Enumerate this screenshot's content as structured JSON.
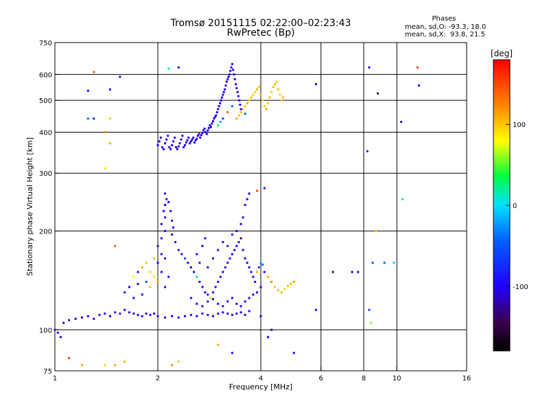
{
  "title": "Tromsø 20151115 02:22:00–02:23:43",
  "subtitle": "RwPretec (Bp)",
  "phases": {
    "heading": "Phases",
    "line_o": "mean, sd,O: -93.3, 18.0",
    "line_x": "mean, sd,X:  93.8, 21.5"
  },
  "colorbar": {
    "unit": "[deg]",
    "ticks": [
      {
        "value": 100,
        "label": "100"
      },
      {
        "value": 0,
        "label": "0"
      },
      {
        "value": -100,
        "label": "-100"
      }
    ],
    "range": [
      -180,
      180
    ]
  },
  "chart_data": {
    "type": "scatter",
    "xlabel": "Frequency [MHz]",
    "ylabel": "Stationary phase Virtual Height [km]",
    "x_scale": "log",
    "y_scale": "log",
    "xlim": [
      1,
      16
    ],
    "ylim": [
      75,
      750
    ],
    "grid": true,
    "x_ticks": [
      {
        "value": 1,
        "label": "1"
      },
      {
        "value": 2,
        "label": "2"
      },
      {
        "value": 4,
        "label": "4"
      },
      {
        "value": 6,
        "label": "6"
      },
      {
        "value": 8,
        "label": "8"
      },
      {
        "value": 10,
        "label": "10"
      },
      {
        "value": 16,
        "label": "16"
      }
    ],
    "x_grid": [
      2,
      4,
      6,
      8,
      10
    ],
    "y_ticks": [
      {
        "value": 75,
        "label": "75"
      },
      {
        "value": 100,
        "label": "100"
      },
      {
        "value": 200,
        "label": "200"
      },
      {
        "value": 300,
        "label": "300"
      },
      {
        "value": 400,
        "label": "400"
      },
      {
        "value": 500,
        "label": "500"
      },
      {
        "value": 600,
        "label": "600"
      },
      {
        "value": 750,
        "label": "750"
      }
    ],
    "y_grid": [
      100,
      200,
      300,
      400,
      500,
      600
    ],
    "point_color_by": "phase [deg]",
    "points": [
      [
        1.02,
        98,
        -100
      ],
      [
        1.04,
        95,
        -110
      ],
      [
        1.06,
        105,
        -105
      ],
      [
        1.1,
        107,
        -95
      ],
      [
        1.15,
        108,
        -100
      ],
      [
        1.2,
        109,
        -110
      ],
      [
        1.25,
        110,
        -100
      ],
      [
        1.3,
        108,
        -105
      ],
      [
        1.35,
        111,
        -95
      ],
      [
        1.4,
        112,
        -100
      ],
      [
        1.45,
        110,
        -110
      ],
      [
        1.5,
        113,
        -100
      ],
      [
        1.55,
        112,
        -90
      ],
      [
        1.6,
        115,
        -100
      ],
      [
        1.65,
        113,
        -105
      ],
      [
        1.7,
        112,
        -110
      ],
      [
        1.75,
        111,
        -100
      ],
      [
        1.8,
        110,
        -95
      ],
      [
        1.85,
        112,
        -100
      ],
      [
        1.9,
        111,
        -105
      ],
      [
        1.95,
        112,
        -110
      ],
      [
        2.0,
        110,
        -100
      ],
      [
        2.1,
        109,
        -95
      ],
      [
        2.2,
        110,
        -100
      ],
      [
        2.3,
        109,
        -105
      ],
      [
        2.4,
        110,
        -100
      ],
      [
        2.5,
        111,
        -95
      ],
      [
        2.6,
        110,
        -105
      ],
      [
        2.7,
        112,
        -100
      ],
      [
        2.8,
        111,
        -110
      ],
      [
        2.9,
        110,
        -100
      ],
      [
        3.0,
        112,
        -95
      ],
      [
        3.1,
        113,
        -105
      ],
      [
        3.2,
        112,
        -100
      ],
      [
        3.3,
        111,
        -110
      ],
      [
        3.4,
        112,
        -100
      ],
      [
        3.5,
        113,
        -95
      ],
      [
        3.6,
        111,
        -105
      ],
      [
        3.7,
        114,
        -100
      ],
      [
        1.6,
        130,
        -100
      ],
      [
        1.65,
        135,
        -105
      ],
      [
        1.7,
        125,
        -95
      ],
      [
        1.75,
        138,
        -110
      ],
      [
        1.8,
        128,
        -100
      ],
      [
        1.85,
        140,
        -60
      ],
      [
        1.9,
        135,
        100
      ],
      [
        1.95,
        145,
        90
      ],
      [
        2.0,
        140,
        110
      ],
      [
        2.05,
        150,
        -100
      ],
      [
        2.1,
        135,
        -105
      ],
      [
        2.15,
        145,
        -95
      ],
      [
        1.8,
        155,
        110
      ],
      [
        1.85,
        160,
        100
      ],
      [
        1.9,
        150,
        95
      ],
      [
        1.95,
        165,
        105
      ],
      [
        1.7,
        145,
        80
      ],
      [
        1.75,
        150,
        -100
      ],
      [
        2.0,
        160,
        -105
      ],
      [
        2.05,
        170,
        -100
      ],
      [
        2.1,
        165,
        -95
      ],
      [
        2.0,
        180,
        -110
      ],
      [
        2.05,
        190,
        -100
      ],
      [
        2.1,
        200,
        -100
      ],
      [
        2.05,
        210,
        -105
      ],
      [
        2.1,
        220,
        -95
      ],
      [
        2.08,
        230,
        -100
      ],
      [
        2.1,
        240,
        -110
      ],
      [
        2.12,
        250,
        -100
      ],
      [
        2.1,
        260,
        -105
      ],
      [
        2.15,
        245,
        -95
      ],
      [
        2.18,
        230,
        -100
      ],
      [
        2.2,
        215,
        -110
      ],
      [
        2.22,
        205,
        -100
      ],
      [
        2.2,
        195,
        -105
      ],
      [
        2.25,
        185,
        -95
      ],
      [
        2.3,
        175,
        -100
      ],
      [
        2.35,
        170,
        -105
      ],
      [
        2.4,
        165,
        -60
      ],
      [
        2.45,
        160,
        -100
      ],
      [
        2.5,
        155,
        -110
      ],
      [
        2.55,
        150,
        -100
      ],
      [
        2.6,
        145,
        20
      ],
      [
        2.65,
        140,
        -100
      ],
      [
        2.7,
        135,
        -105
      ],
      [
        2.75,
        130,
        -95
      ],
      [
        2.8,
        128,
        -100
      ],
      [
        2.85,
        125,
        60
      ],
      [
        2.9,
        130,
        -100
      ],
      [
        2.95,
        135,
        -105
      ],
      [
        3.0,
        140,
        -95
      ],
      [
        3.05,
        145,
        -100
      ],
      [
        3.1,
        150,
        -110
      ],
      [
        3.15,
        155,
        -100
      ],
      [
        3.2,
        160,
        -105
      ],
      [
        3.25,
        165,
        -95
      ],
      [
        3.3,
        170,
        -100
      ],
      [
        3.35,
        175,
        -110
      ],
      [
        3.4,
        180,
        -100
      ],
      [
        3.45,
        185,
        -105
      ],
      [
        3.5,
        190,
        -140
      ],
      [
        3.55,
        175,
        -100
      ],
      [
        3.6,
        165,
        -105
      ],
      [
        3.65,
        160,
        -95
      ],
      [
        3.7,
        155,
        -100
      ],
      [
        3.75,
        150,
        -110
      ],
      [
        3.8,
        145,
        -100
      ],
      [
        3.85,
        140,
        -105
      ],
      [
        3.9,
        150,
        110
      ],
      [
        3.95,
        155,
        -60
      ],
      [
        4.0,
        160,
        -20
      ],
      [
        4.05,
        158,
        -40
      ],
      [
        4.1,
        150,
        -100
      ],
      [
        4.2,
        145,
        110
      ],
      [
        4.3,
        140,
        120
      ],
      [
        4.4,
        135,
        100
      ],
      [
        4.5,
        132,
        105
      ],
      [
        4.6,
        130,
        110
      ],
      [
        4.7,
        133,
        95
      ],
      [
        4.8,
        136,
        100
      ],
      [
        4.9,
        138,
        110
      ],
      [
        5.0,
        140,
        120
      ],
      [
        2.5,
        125,
        -100
      ],
      [
        2.6,
        120,
        -105
      ],
      [
        2.7,
        118,
        -95
      ],
      [
        2.8,
        122,
        -100
      ],
      [
        2.9,
        124,
        -140
      ],
      [
        3.0,
        120,
        -100
      ],
      [
        3.1,
        118,
        -110
      ],
      [
        3.2,
        122,
        -100
      ],
      [
        3.3,
        125,
        -105
      ],
      [
        3.4,
        120,
        -95
      ],
      [
        3.5,
        118,
        -100
      ],
      [
        3.6,
        122,
        -110
      ],
      [
        3.7,
        125,
        -100
      ],
      [
        3.8,
        128,
        -105
      ],
      [
        3.9,
        130,
        -95
      ],
      [
        4.0,
        135,
        -100
      ],
      [
        2.6,
        170,
        -100
      ],
      [
        2.7,
        180,
        -105
      ],
      [
        2.75,
        190,
        -95
      ],
      [
        2.65,
        160,
        -100
      ],
      [
        2.8,
        155,
        -100
      ],
      [
        2.9,
        165,
        -110
      ],
      [
        3.0,
        175,
        -100
      ],
      [
        3.1,
        185,
        -105
      ],
      [
        3.2,
        180,
        -95
      ],
      [
        3.3,
        195,
        -100
      ],
      [
        3.4,
        200,
        -110
      ],
      [
        3.5,
        210,
        -100
      ],
      [
        3.55,
        220,
        -105
      ],
      [
        3.6,
        240,
        -95
      ],
      [
        3.65,
        250,
        -100
      ],
      [
        3.7,
        260,
        -110
      ],
      [
        3.9,
        265,
        150
      ],
      [
        4.1,
        270,
        -100
      ],
      [
        2.0,
        365,
        -100
      ],
      [
        2.02,
        375,
        -105
      ],
      [
        2.04,
        385,
        -95
      ],
      [
        2.06,
        360,
        -100
      ],
      [
        2.08,
        355,
        -110
      ],
      [
        2.1,
        370,
        -100
      ],
      [
        2.12,
        380,
        -105
      ],
      [
        2.14,
        390,
        -95
      ],
      [
        2.16,
        360,
        -100
      ],
      [
        2.18,
        355,
        -110
      ],
      [
        2.2,
        365,
        -100
      ],
      [
        2.22,
        375,
        -105
      ],
      [
        2.24,
        385,
        -95
      ],
      [
        2.26,
        360,
        -100
      ],
      [
        2.28,
        355,
        -110
      ],
      [
        2.3,
        362,
        -100
      ],
      [
        2.32,
        370,
        -105
      ],
      [
        2.34,
        380,
        -95
      ],
      [
        2.36,
        390,
        -100
      ],
      [
        2.38,
        360,
        -110
      ],
      [
        2.4,
        365,
        -100
      ],
      [
        2.42,
        372,
        -105
      ],
      [
        2.44,
        378,
        -95
      ],
      [
        2.46,
        385,
        -100
      ],
      [
        2.48,
        370,
        -110
      ],
      [
        2.5,
        375,
        -100
      ],
      [
        2.52,
        380,
        -105
      ],
      [
        2.54,
        385,
        -95
      ],
      [
        2.56,
        372,
        -100
      ],
      [
        2.58,
        378,
        -110
      ],
      [
        2.6,
        382,
        -100
      ],
      [
        2.62,
        390,
        -105
      ],
      [
        2.64,
        395,
        -95
      ],
      [
        2.66,
        385,
        -100
      ],
      [
        2.68,
        392,
        -110
      ],
      [
        2.7,
        398,
        -100
      ],
      [
        2.72,
        405,
        -105
      ],
      [
        2.74,
        410,
        -95
      ],
      [
        2.76,
        400,
        -100
      ],
      [
        2.78,
        395,
        -110
      ],
      [
        2.8,
        405,
        -100
      ],
      [
        2.82,
        412,
        -105
      ],
      [
        2.84,
        420,
        -95
      ],
      [
        2.86,
        415,
        -100
      ],
      [
        2.88,
        425,
        -110
      ],
      [
        2.9,
        432,
        -100
      ],
      [
        2.92,
        440,
        -105
      ],
      [
        2.94,
        445,
        -95
      ],
      [
        2.96,
        450,
        -100
      ],
      [
        2.98,
        460,
        -110
      ],
      [
        3.0,
        470,
        -100
      ],
      [
        3.02,
        480,
        -105
      ],
      [
        3.04,
        490,
        -95
      ],
      [
        3.06,
        500,
        -100
      ],
      [
        3.08,
        510,
        -110
      ],
      [
        3.1,
        520,
        -100
      ],
      [
        3.12,
        530,
        -105
      ],
      [
        3.14,
        540,
        -95
      ],
      [
        3.16,
        555,
        -100
      ],
      [
        3.18,
        570,
        -110
      ],
      [
        3.2,
        580,
        -100
      ],
      [
        3.22,
        590,
        -105
      ],
      [
        3.24,
        600,
        -95
      ],
      [
        3.26,
        615,
        -100
      ],
      [
        3.28,
        630,
        -110
      ],
      [
        3.3,
        645,
        -100
      ],
      [
        3.32,
        620,
        -105
      ],
      [
        3.34,
        600,
        -95
      ],
      [
        3.36,
        580,
        -100
      ],
      [
        3.38,
        560,
        -110
      ],
      [
        3.4,
        545,
        -100
      ],
      [
        3.42,
        530,
        -105
      ],
      [
        3.44,
        515,
        -95
      ],
      [
        3.46,
        500,
        -100
      ],
      [
        3.48,
        485,
        -110
      ],
      [
        3.5,
        470,
        -100
      ],
      [
        3.4,
        440,
        110
      ],
      [
        3.45,
        450,
        100
      ],
      [
        3.5,
        460,
        105
      ],
      [
        3.55,
        470,
        95
      ],
      [
        3.6,
        480,
        100
      ],
      [
        3.65,
        490,
        110
      ],
      [
        3.7,
        500,
        100
      ],
      [
        3.75,
        510,
        105
      ],
      [
        3.8,
        520,
        95
      ],
      [
        3.85,
        530,
        100
      ],
      [
        3.9,
        540,
        110
      ],
      [
        3.95,
        550,
        100
      ],
      [
        4.0,
        520,
        105
      ],
      [
        4.05,
        500,
        95
      ],
      [
        4.1,
        480,
        100
      ],
      [
        4.15,
        470,
        110
      ],
      [
        4.2,
        490,
        100
      ],
      [
        4.25,
        510,
        105
      ],
      [
        4.3,
        530,
        95
      ],
      [
        4.35,
        550,
        100
      ],
      [
        4.4,
        560,
        110
      ],
      [
        4.45,
        570,
        100
      ],
      [
        4.5,
        540,
        105
      ],
      [
        4.55,
        520,
        95
      ],
      [
        4.6,
        500,
        100
      ],
      [
        4.65,
        510,
        110
      ],
      [
        3.0,
        420,
        30
      ],
      [
        3.05,
        430,
        -20
      ],
      [
        3.1,
        440,
        -60
      ],
      [
        3.2,
        460,
        140
      ],
      [
        3.3,
        480,
        -40
      ],
      [
        3.6,
        455,
        -40
      ],
      [
        1.3,
        610,
        140
      ],
      [
        1.55,
        590,
        -100
      ],
      [
        1.45,
        540,
        -100
      ],
      [
        1.25,
        535,
        -100
      ],
      [
        2.3,
        630,
        -100
      ],
      [
        2.15,
        625,
        20
      ],
      [
        5.8,
        560,
        -110
      ],
      [
        8.3,
        630,
        -100
      ],
      [
        11.5,
        630,
        150
      ],
      [
        8.8,
        525,
        -140
      ],
      [
        10.3,
        430,
        -120
      ],
      [
        11.6,
        555,
        -100
      ],
      [
        8.2,
        350,
        -80
      ],
      [
        10.4,
        250,
        20
      ],
      [
        8.7,
        200,
        100
      ],
      [
        8.5,
        160,
        -60
      ],
      [
        9.2,
        160,
        -40
      ],
      [
        9.8,
        160,
        0
      ],
      [
        7.4,
        150,
        -100
      ],
      [
        7.7,
        150,
        -110
      ],
      [
        6.5,
        150,
        -140
      ],
      [
        1.45,
        440,
        100
      ],
      [
        1.4,
        400,
        120
      ],
      [
        1.45,
        370,
        110
      ],
      [
        1.4,
        310,
        90
      ],
      [
        1.3,
        440,
        -80
      ],
      [
        1.5,
        180,
        140
      ],
      [
        1.25,
        440,
        -40
      ],
      [
        1.1,
        82,
        150
      ],
      [
        1.2,
        78,
        110
      ],
      [
        1.4,
        78,
        100
      ],
      [
        1.5,
        78,
        120
      ],
      [
        1.6,
        80,
        110
      ],
      [
        2.3,
        80,
        100
      ],
      [
        2.2,
        78,
        120
      ],
      [
        3.0,
        90,
        110
      ],
      [
        3.3,
        85,
        -100
      ],
      [
        4.2,
        95,
        -110
      ],
      [
        5.0,
        85,
        -100
      ],
      [
        1.0,
        100,
        -90
      ],
      [
        8.4,
        105,
        60
      ],
      [
        8.3,
        115,
        -60
      ],
      [
        5.8,
        115,
        -100
      ],
      [
        4.3,
        100,
        -100
      ],
      [
        4.0,
        110,
        -100
      ]
    ]
  }
}
